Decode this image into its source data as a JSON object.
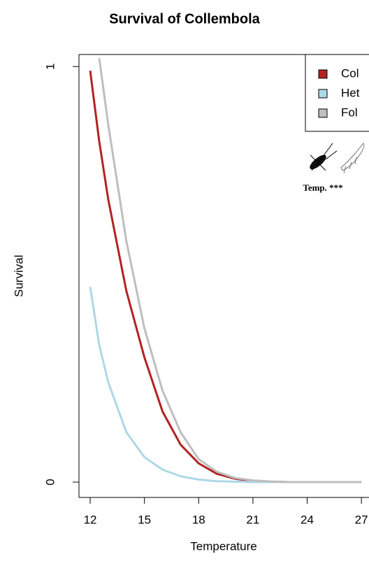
{
  "chart_data": {
    "type": "line",
    "title": "Survival of Collembola",
    "x_label": "Temperature",
    "y_label": "Survival",
    "x": [
      12,
      12.5,
      13,
      14,
      15,
      16,
      17,
      18,
      19,
      20,
      21,
      22,
      23,
      24,
      25,
      26,
      27
    ],
    "series": [
      {
        "name": "Col",
        "color": "#b22222",
        "values": [
          0.99,
          0.82,
          0.68,
          0.46,
          0.3,
          0.17,
          0.09,
          0.045,
          0.02,
          0.008,
          0.003,
          0.001,
          0,
          0,
          0,
          0,
          0
        ]
      },
      {
        "name": "Het",
        "color": "#add8e6",
        "values": [
          0.47,
          0.33,
          0.24,
          0.12,
          0.06,
          0.03,
          0.014,
          0.006,
          0.002,
          0.001,
          0,
          0,
          0,
          0,
          0,
          0,
          0
        ]
      },
      {
        "name": "Fol",
        "color": "#bebebe",
        "values": [
          null,
          1.02,
          0.86,
          0.58,
          0.37,
          0.22,
          0.12,
          0.055,
          0.025,
          0.01,
          0.004,
          0.0015,
          0,
          0,
          0,
          0,
          0
        ]
      }
    ],
    "annotation": "Temp. ***",
    "xlim": [
      11.38,
      27.42
    ],
    "ylim": [
      -0.037,
      1.029
    ],
    "xticks": [
      12,
      15,
      18,
      21,
      24,
      27
    ],
    "yticks": [
      0,
      1
    ],
    "legend": "top-right"
  }
}
